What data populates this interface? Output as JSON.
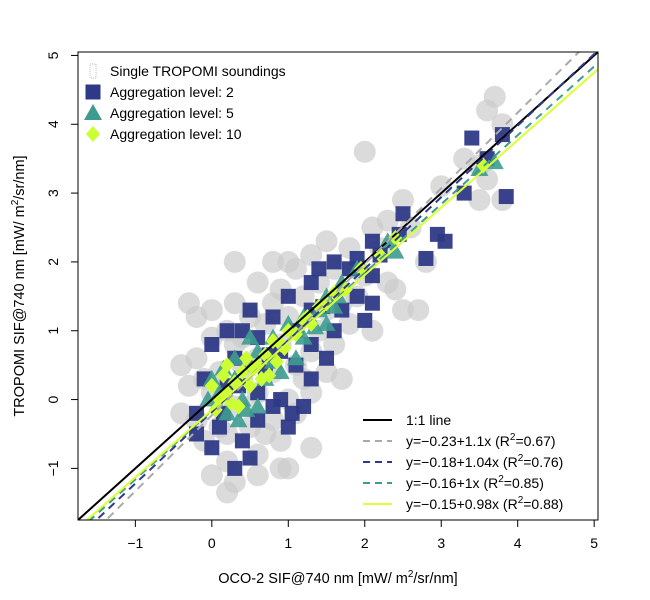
{
  "chart_data": {
    "type": "scatter",
    "xlabel_prefix": "OCO-2 SIF@740 nm [mW/ m",
    "xlabel_suffix": "/sr/nm]",
    "ylabel_prefix": "TROPOMI SIF@740 nm [mW/ m",
    "ylabel_suffix": "/sr/nm]",
    "superscript": "2",
    "xlim": [
      -1.75,
      5.05
    ],
    "ylim": [
      -1.75,
      5.05
    ],
    "x_ticks": [
      -1,
      0,
      1,
      2,
      3,
      4,
      5
    ],
    "y_ticks": [
      -1,
      0,
      1,
      2,
      3,
      4,
      5
    ],
    "x_tick_labels": [
      "−1",
      "0",
      "1",
      "2",
      "3",
      "4",
      "5"
    ],
    "y_tick_labels": [
      "−1",
      "0",
      "1",
      "2",
      "3",
      "4",
      "5"
    ],
    "grid": false,
    "legend_top": {
      "position": "top-left",
      "entries": [
        {
          "label": "Single TROPOMI soundings",
          "marker": "circle",
          "color": "#cccccc"
        },
        {
          "label": "Aggregation level: 2",
          "marker": "square",
          "color": "#2e3a87"
        },
        {
          "label": "Aggregation level: 5",
          "marker": "triangle",
          "color": "#3d9c8f"
        },
        {
          "label": "Aggregation level: 10",
          "marker": "diamond",
          "color": "#ccff33"
        }
      ]
    },
    "legend_bottom": {
      "position": "bottom-right",
      "entries": [
        {
          "label": "1:1 line",
          "style": "solid",
          "color": "#000000"
        },
        {
          "label_pre": "y=−0.23+1.1x (R",
          "label_post": "=0.67)",
          "style": "dashed",
          "color": "#aaaaaa"
        },
        {
          "label_pre": "y=−0.18+1.04x (R",
          "label_post": "=0.76)",
          "style": "dashed",
          "color": "#2e3a87"
        },
        {
          "label_pre": "y=−0.16+1x (R",
          "label_post": "=0.85)",
          "style": "dashed",
          "color": "#3d9c8f"
        },
        {
          "label_pre": "y=−0.15+0.98x (R",
          "label_post": "=0.88)",
          "style": "solid",
          "color": "#ddff33"
        }
      ]
    },
    "lines": [
      {
        "name": "1:1 line",
        "intercept": 0,
        "slope": 1,
        "color": "#000000",
        "dashed": false
      },
      {
        "name": "fit single",
        "intercept": -0.23,
        "slope": 1.1,
        "color": "#aaaaaa",
        "dashed": true
      },
      {
        "name": "fit level 2",
        "intercept": -0.18,
        "slope": 1.04,
        "color": "#2e3a87",
        "dashed": true
      },
      {
        "name": "fit level 5",
        "intercept": -0.16,
        "slope": 1.0,
        "color": "#3d9c8f",
        "dashed": true
      },
      {
        "name": "fit level 10",
        "intercept": -0.15,
        "slope": 0.98,
        "color": "#ddff33",
        "dashed": false
      }
    ],
    "series": [
      {
        "name": "Single TROPOMI soundings",
        "marker": "circle",
        "color": "#cccccc",
        "points": [
          [
            3.7,
            4.4
          ],
          [
            3.6,
            4.2
          ],
          [
            3.8,
            4.0
          ],
          [
            2.0,
            3.6
          ],
          [
            3.3,
            3.5
          ],
          [
            3.5,
            3.4
          ],
          [
            3.6,
            3.2
          ],
          [
            3.0,
            3.1
          ],
          [
            3.5,
            2.9
          ],
          [
            3.8,
            2.9
          ],
          [
            2.5,
            2.9
          ],
          [
            2.3,
            2.6
          ],
          [
            2.6,
            2.5
          ],
          [
            2.1,
            2.5
          ],
          [
            1.8,
            2.2
          ],
          [
            1.5,
            2.3
          ],
          [
            1.3,
            2.1
          ],
          [
            1.0,
            2.0
          ],
          [
            0.8,
            2.0
          ],
          [
            0.3,
            2.0
          ],
          [
            1.1,
            1.9
          ],
          [
            1.6,
            1.9
          ],
          [
            2.0,
            1.8
          ],
          [
            2.3,
            1.7
          ],
          [
            2.4,
            1.6
          ],
          [
            2.5,
            1.3
          ],
          [
            2.7,
            1.3
          ],
          [
            1.9,
            1.5
          ],
          [
            1.7,
            1.4
          ],
          [
            1.2,
            1.5
          ],
          [
            0.9,
            1.6
          ],
          [
            0.6,
            1.7
          ],
          [
            -0.3,
            1.4
          ],
          [
            -0.2,
            1.2
          ],
          [
            0.0,
            1.3
          ],
          [
            0.3,
            1.4
          ],
          [
            0.5,
            1.2
          ],
          [
            0.7,
            1.1
          ],
          [
            1.0,
            1.2
          ],
          [
            1.4,
            1.0
          ],
          [
            1.8,
            1.1
          ],
          [
            2.1,
            1.0
          ],
          [
            1.6,
            0.8
          ],
          [
            1.3,
            0.7
          ],
          [
            0.9,
            0.8
          ],
          [
            0.6,
            0.6
          ],
          [
            0.3,
            0.8
          ],
          [
            0.0,
            0.9
          ],
          [
            -0.2,
            0.6
          ],
          [
            -0.4,
            0.5
          ],
          [
            0.1,
            0.4
          ],
          [
            0.4,
            0.3
          ],
          [
            0.8,
            0.4
          ],
          [
            1.1,
            0.5
          ],
          [
            1.5,
            0.4
          ],
          [
            1.3,
            0.1
          ],
          [
            1.0,
            0.0
          ],
          [
            0.6,
            0.1
          ],
          [
            0.3,
            -0.1
          ],
          [
            0.0,
            0.1
          ],
          [
            -0.3,
            0.2
          ],
          [
            -0.2,
            -0.3
          ],
          [
            0.2,
            -0.5
          ],
          [
            0.5,
            -0.4
          ],
          [
            0.8,
            -0.3
          ],
          [
            1.1,
            -0.2
          ],
          [
            0.9,
            -0.6
          ],
          [
            0.6,
            -0.8
          ],
          [
            0.2,
            -0.9
          ],
          [
            0.0,
            -1.1
          ],
          [
            0.3,
            -1.2
          ],
          [
            0.2,
            -1.35
          ],
          [
            0.6,
            -1.1
          ],
          [
            0.9,
            -1.0
          ],
          [
            1.3,
            -0.7
          ],
          [
            1.0,
            -1.0
          ],
          [
            -0.1,
            -0.6
          ],
          [
            -0.4,
            -0.2
          ],
          [
            0.4,
            0.5
          ],
          [
            1.7,
            0.3
          ],
          [
            0.2,
            1.0
          ],
          [
            1.9,
            1.9
          ],
          [
            2.8,
            2.0
          ],
          [
            2.2,
            2.2
          ],
          [
            1.4,
            1.7
          ],
          [
            0.5,
            -0.1
          ],
          [
            0.7,
            -0.5
          ],
          [
            1.2,
            0.3
          ],
          [
            0.1,
            -0.4
          ],
          [
            -0.1,
            0.3
          ],
          [
            1.5,
            1.3
          ],
          [
            0.8,
            1.4
          ],
          [
            0.4,
            0.9
          ]
        ]
      },
      {
        "name": "Aggregation level: 2",
        "marker": "square",
        "color": "#2e3a87",
        "points": [
          [
            3.4,
            3.8
          ],
          [
            3.8,
            3.85
          ],
          [
            3.6,
            3.5
          ],
          [
            3.3,
            3.0
          ],
          [
            3.85,
            2.95
          ],
          [
            2.5,
            2.7
          ],
          [
            2.45,
            2.4
          ],
          [
            2.95,
            2.4
          ],
          [
            3.05,
            2.3
          ],
          [
            2.1,
            2.3
          ],
          [
            2.8,
            2.05
          ],
          [
            2.2,
            2.1
          ],
          [
            1.9,
            2.05
          ],
          [
            1.8,
            1.9
          ],
          [
            1.6,
            2.0
          ],
          [
            1.4,
            1.9
          ],
          [
            2.1,
            1.8
          ],
          [
            1.0,
            1.5
          ],
          [
            1.3,
            1.7
          ],
          [
            1.9,
            1.5
          ],
          [
            2.1,
            1.4
          ],
          [
            2.0,
            1.15
          ],
          [
            1.3,
            1.3
          ],
          [
            0.8,
            1.2
          ],
          [
            0.5,
            1.3
          ],
          [
            0.2,
            1.0
          ],
          [
            0.6,
            0.9
          ],
          [
            0.9,
            0.7
          ],
          [
            1.3,
            0.8
          ],
          [
            1.6,
            1.0
          ],
          [
            1.5,
            0.6
          ],
          [
            1.1,
            0.5
          ],
          [
            0.7,
            0.4
          ],
          [
            0.3,
            0.6
          ],
          [
            0.0,
            0.8
          ],
          [
            -0.1,
            0.3
          ],
          [
            0.2,
            0.2
          ],
          [
            0.6,
            0.1
          ],
          [
            0.9,
            0.0
          ],
          [
            1.2,
            -0.1
          ],
          [
            1.0,
            -0.4
          ],
          [
            0.6,
            -0.3
          ],
          [
            0.4,
            -0.6
          ],
          [
            0.1,
            -0.4
          ],
          [
            -0.2,
            -0.2
          ],
          [
            -0.2,
            -0.5
          ],
          [
            0.0,
            -0.7
          ],
          [
            0.5,
            -0.85
          ],
          [
            0.3,
            -1.0
          ],
          [
            1.3,
            0.3
          ],
          [
            0.8,
            -0.1
          ],
          [
            0.35,
            0.2
          ],
          [
            1.7,
            1.3
          ],
          [
            1.1,
            1.0
          ],
          [
            0.4,
            1.0
          ],
          [
            0.15,
            -0.2
          ],
          [
            0.75,
            0.65
          ],
          [
            1.45,
            1.35
          ],
          [
            1.05,
            -0.2
          ]
        ]
      },
      {
        "name": "Aggregation level: 5",
        "marker": "triangle",
        "color": "#3d9c8f",
        "points": [
          [
            3.7,
            3.45
          ],
          [
            3.5,
            3.35
          ],
          [
            2.4,
            2.15
          ],
          [
            2.3,
            2.3
          ],
          [
            1.9,
            1.9
          ],
          [
            1.7,
            1.7
          ],
          [
            1.5,
            1.5
          ],
          [
            1.4,
            1.3
          ],
          [
            1.2,
            1.2
          ],
          [
            1.6,
            1.35
          ],
          [
            1.0,
            1.1
          ],
          [
            0.8,
            0.9
          ],
          [
            0.6,
            0.7
          ],
          [
            0.5,
            0.5
          ],
          [
            0.3,
            0.3
          ],
          [
            0.1,
            0.1
          ],
          [
            0.0,
            0.3
          ],
          [
            -0.05,
            0.0
          ],
          [
            0.2,
            -0.2
          ],
          [
            0.35,
            -0.3
          ],
          [
            0.6,
            -0.1
          ],
          [
            0.9,
            0.4
          ],
          [
            1.1,
            0.6
          ],
          [
            0.7,
            0.3
          ],
          [
            0.4,
            0.0
          ],
          [
            1.5,
            1.1
          ],
          [
            1.2,
            0.9
          ],
          [
            0.3,
            0.6
          ],
          [
            0.5,
            0.9
          ],
          [
            1.65,
            1.5
          ],
          [
            0.8,
            0.55
          ],
          [
            0.15,
            0.45
          ],
          [
            1.35,
            1.05
          ],
          [
            0.45,
            -0.15
          ]
        ]
      },
      {
        "name": "Aggregation level: 10",
        "marker": "diamond",
        "color": "#ccff33",
        "points": [
          [
            3.55,
            3.4
          ],
          [
            2.4,
            2.35
          ],
          [
            2.2,
            2.1
          ],
          [
            1.95,
            1.9
          ],
          [
            1.75,
            1.6
          ],
          [
            1.6,
            1.55
          ],
          [
            1.4,
            1.35
          ],
          [
            1.2,
            1.15
          ],
          [
            1.0,
            1.0
          ],
          [
            0.9,
            0.8
          ],
          [
            0.7,
            0.65
          ],
          [
            0.6,
            0.5
          ],
          [
            0.4,
            0.4
          ],
          [
            0.3,
            0.25
          ],
          [
            0.2,
            0.1
          ],
          [
            0.1,
            0.0
          ],
          [
            0.0,
            0.2
          ],
          [
            0.05,
            -0.15
          ],
          [
            0.25,
            -0.05
          ],
          [
            0.5,
            0.2
          ],
          [
            0.75,
            0.35
          ],
          [
            0.85,
            0.55
          ],
          [
            1.1,
            0.95
          ],
          [
            1.3,
            1.1
          ],
          [
            0.45,
            0.6
          ],
          [
            0.15,
            0.35
          ],
          [
            0.35,
            -0.1
          ],
          [
            0.65,
            0.3
          ],
          [
            1.5,
            1.4
          ],
          [
            0.95,
            0.75
          ],
          [
            0.55,
            0.45
          ],
          [
            1.25,
            1.2
          ],
          [
            0.2,
            0.5
          ],
          [
            0.8,
            0.85
          ]
        ]
      }
    ]
  }
}
